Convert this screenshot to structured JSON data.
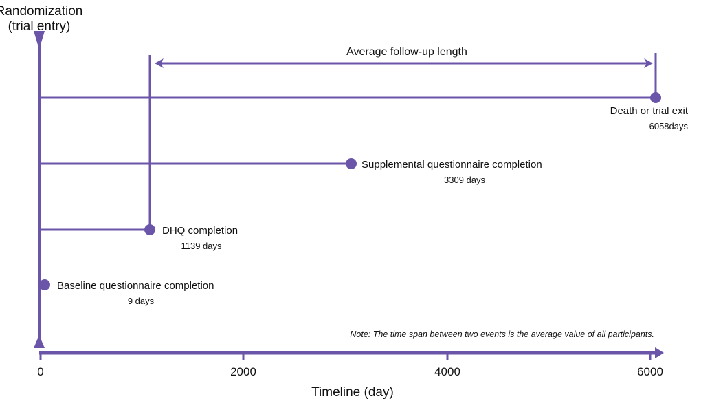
{
  "title_line1": "Randomization",
  "title_line2": "(trial entry)",
  "follow_up_label": "Average follow-up length",
  "events": [
    {
      "label": "Death or trial exit",
      "value": "6058",
      "unit": "days"
    },
    {
      "label": "Supplemental questionnaire completion",
      "days": "3309 days"
    },
    {
      "label": "DHQ completion",
      "days": "1139 days"
    },
    {
      "label": "Baseline questionnaire completion",
      "days": "9 days"
    }
  ],
  "note": "Note: The time span between two events is the average value of all participants.",
  "axis": {
    "ticks": [
      "0",
      "2000",
      "4000",
      "6000"
    ],
    "label": "Timeline (day)"
  },
  "colors": {
    "accent": "#6A55A8"
  }
}
